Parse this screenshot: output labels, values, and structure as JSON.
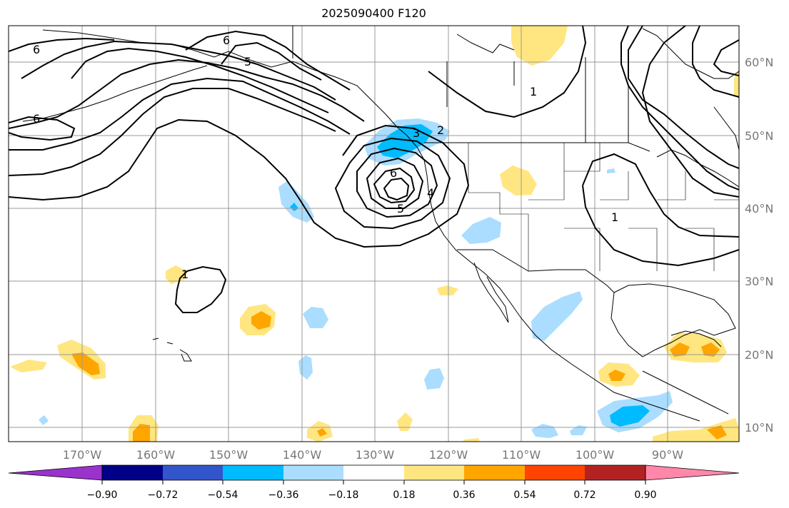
{
  "title": "2025090400 F120",
  "lon_labels": [
    "170°W",
    "160°W",
    "150°W",
    "140°W",
    "130°W",
    "120°W",
    "110°W",
    "100°W",
    "90°W"
  ],
  "lat_labels": [
    "60°N",
    "50°N",
    "40°N",
    "30°N",
    "20°N",
    "10°N"
  ],
  "contour_labels": [
    {
      "text": "6",
      "name": "contour-label-6-west-top"
    },
    {
      "text": "6",
      "name": "contour-label-6-gulf-alaska"
    },
    {
      "text": "5",
      "name": "contour-label-5-alaska"
    },
    {
      "text": "6",
      "name": "contour-label-6-west-mid"
    },
    {
      "text": "2",
      "name": "contour-label-2-pnw"
    },
    {
      "text": "3",
      "name": "contour-label-3-pnw"
    },
    {
      "text": "6",
      "name": "contour-label-6-low-center"
    },
    {
      "text": "5",
      "name": "contour-label-5-low"
    },
    {
      "text": "4",
      "name": "contour-label-4-low"
    },
    {
      "text": "1",
      "name": "contour-label-1-canada"
    },
    {
      "text": "1",
      "name": "contour-label-1-midwest"
    },
    {
      "text": "1",
      "name": "contour-label-1-pacific"
    }
  ],
  "colorbar": {
    "tick_labels": [
      "−0.90",
      "−0.72",
      "−0.54",
      "−0.36",
      "−0.18",
      "0.18",
      "0.36",
      "0.54",
      "0.72",
      "0.90"
    ],
    "colors": [
      "#9933cc",
      "#000088",
      "#3355cc",
      "#00bbff",
      "#aaddff",
      "#ffffff",
      "#ffe680",
      "#ffa500",
      "#ff4400",
      "#b22222",
      "#ff88aa"
    ]
  },
  "colors": {
    "frame": "#000000",
    "grid": "#999999",
    "axis_label": "#777777"
  }
}
